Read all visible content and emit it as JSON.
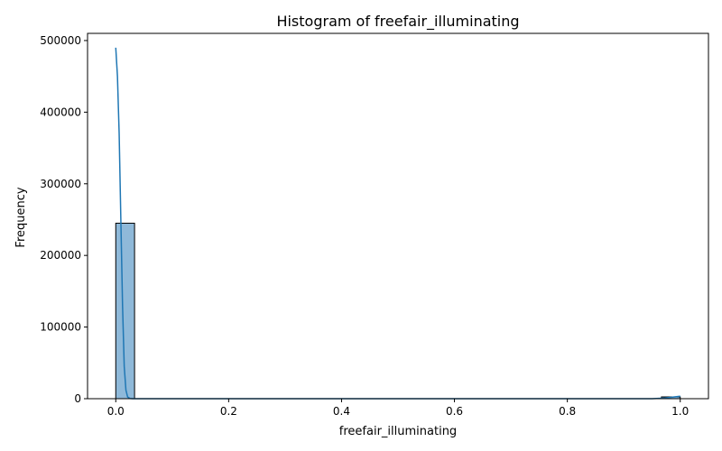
{
  "chart_data": {
    "type": "bar",
    "title": "Histogram of freefair_illuminating",
    "xlabel": "freefair_illuminating",
    "ylabel": "Frequency",
    "xlim": [
      -0.05,
      1.05
    ],
    "ylim": [
      0,
      510000
    ],
    "xticks": [
      0.0,
      0.2,
      0.4,
      0.6,
      0.8,
      1.0
    ],
    "xtick_labels": [
      "0.0",
      "0.2",
      "0.4",
      "0.6",
      "0.8",
      "1.0"
    ],
    "yticks": [
      0,
      100000,
      200000,
      300000,
      400000,
      500000
    ],
    "ytick_labels": [
      "0",
      "100000",
      "200000",
      "300000",
      "400000",
      "500000"
    ],
    "grid": false,
    "bars": [
      {
        "x0": 0.0,
        "x1": 0.0333,
        "value": 245000
      },
      {
        "x0": 0.9667,
        "x1": 1.0,
        "value": 2500
      }
    ],
    "bin_width": 0.0333,
    "kde": {
      "x": [
        0.0,
        0.003,
        0.006,
        0.009,
        0.012,
        0.015,
        0.018,
        0.021,
        0.025,
        0.03,
        0.05,
        0.2,
        0.4,
        0.6,
        0.8,
        0.95,
        0.97,
        0.985,
        1.0
      ],
      "y": [
        490000,
        450000,
        370000,
        250000,
        130000,
        45000,
        12000,
        2500,
        300,
        0,
        0,
        0,
        0,
        0,
        0,
        0,
        800,
        2000,
        3500
      ]
    },
    "colors": {
      "bar_fill": "#8fb9d9",
      "bar_edge": "#000000",
      "kde_line": "#1f77b4"
    }
  }
}
